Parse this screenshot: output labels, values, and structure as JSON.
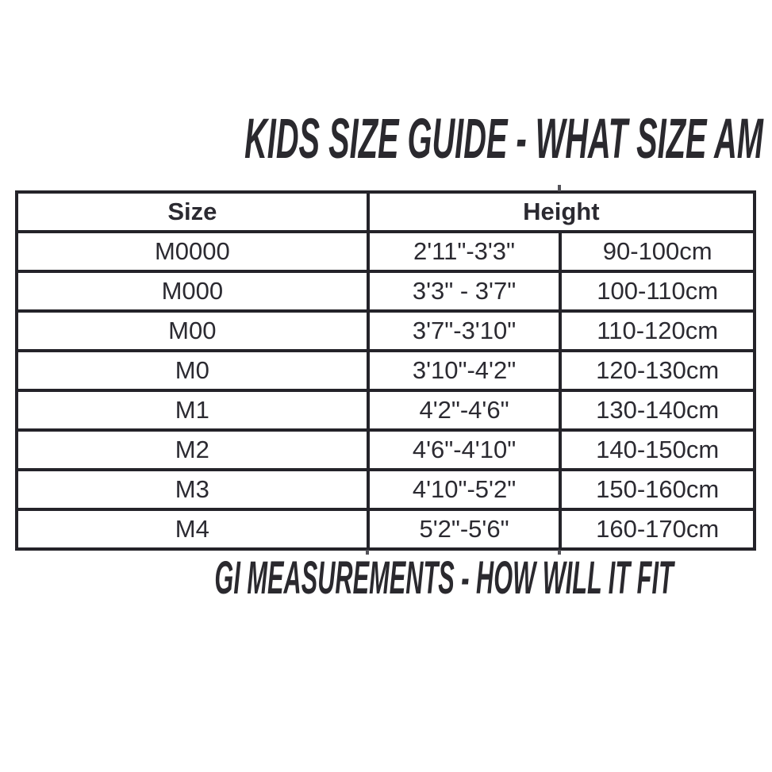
{
  "page_title": "KIDS SIZE GUIDE - WHAT SIZE AM I?",
  "footer_title": "GI MEASUREMENTS - HOW WILL IT FIT",
  "chart_data": {
    "type": "table",
    "title": "KIDS SIZE GUIDE - WHAT SIZE AM I?",
    "column_headers": [
      "Size",
      "Height"
    ],
    "header_spans": [
      1,
      2
    ],
    "subcolumns": [
      "size",
      "height_imperial",
      "height_metric"
    ],
    "rows": [
      {
        "size": "M0000",
        "height_imperial": "2'11\"-3'3\"",
        "height_metric": "90-100cm"
      },
      {
        "size": "M000",
        "height_imperial": "3'3\" - 3'7\"",
        "height_metric": "100-110cm"
      },
      {
        "size": "M00",
        "height_imperial": "3'7\"-3'10\"",
        "height_metric": "110-120cm"
      },
      {
        "size": "M0",
        "height_imperial": "3'10\"-4'2\"",
        "height_metric": "120-130cm"
      },
      {
        "size": "M1",
        "height_imperial": "4'2\"-4'6\"",
        "height_metric": "130-140cm"
      },
      {
        "size": "M2",
        "height_imperial": "4'6\"-4'10\"",
        "height_metric": "140-150cm"
      },
      {
        "size": "M3",
        "height_imperial": "4'10\"-5'2\"",
        "height_metric": "150-160cm"
      },
      {
        "size": "M4",
        "height_imperial": "5'2\"-5'6\"",
        "height_metric": "160-170cm"
      }
    ],
    "footer": "GI MEASUREMENTS - HOW WILL IT FIT"
  },
  "colors": {
    "background": "#ffffff",
    "table_border": "#242329",
    "table_text": "#2b2a31",
    "title_text": "#2a292e"
  }
}
